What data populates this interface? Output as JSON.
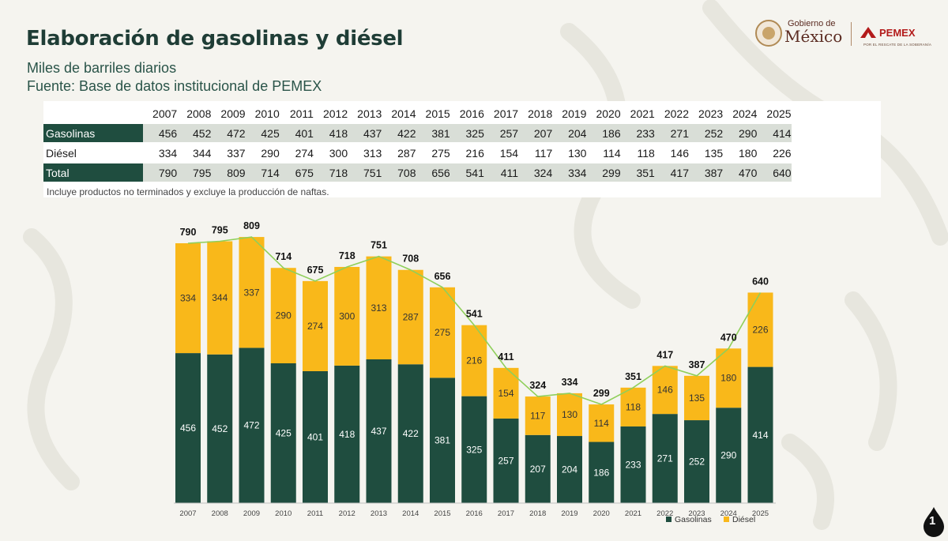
{
  "header": {
    "title": "Elaboración de gasolinas y diésel",
    "subtitle": "Miles de barriles diarios",
    "source": "Fuente: Base de datos institucional de PEMEX"
  },
  "logos": {
    "gob_line1": "Gobierno de",
    "gob_line2": "México",
    "pemex": "PEMEX",
    "pemex_tagline": "POR EL RESCATE DE LA SOBERANÍA"
  },
  "table": {
    "years": [
      "2007",
      "2008",
      "2009",
      "2010",
      "2011",
      "2012",
      "2013",
      "2014",
      "2015",
      "2016",
      "2017",
      "2018",
      "2019",
      "2020",
      "2021",
      "2022",
      "2023",
      "2024",
      "2025"
    ],
    "rows": [
      {
        "label": "Gasolinas",
        "values": [
          "456",
          "452",
          "472",
          "425",
          "401",
          "418",
          "437",
          "422",
          "381",
          "325",
          "257",
          "207",
          "204",
          "186",
          "233",
          "271",
          "252",
          "290",
          "414"
        ]
      },
      {
        "label": "Diésel",
        "values": [
          "334",
          "344",
          "337",
          "290",
          "274",
          "300",
          "313",
          "287",
          "275",
          "216",
          "154",
          "117",
          "130",
          "114",
          "118",
          "146",
          "135",
          "180",
          "226"
        ]
      },
      {
        "label": "Total",
        "values": [
          "790",
          "795",
          "809",
          "714",
          "675",
          "718",
          "751",
          "708",
          "656",
          "541",
          "411",
          "324",
          "334",
          "299",
          "351",
          "417",
          "387",
          "470",
          "640"
        ]
      }
    ]
  },
  "note": "Incluye productos no terminados y excluye la producción de naftas.",
  "chart_data": {
    "type": "bar",
    "stacked": true,
    "categories": [
      "2007",
      "2008",
      "2009",
      "2010",
      "2011",
      "2012",
      "2013",
      "2014",
      "2015",
      "2016",
      "2017",
      "2018",
      "2019",
      "2020",
      "2021",
      "2022",
      "2023",
      "2024",
      "2025"
    ],
    "series": [
      {
        "name": "Gasolinas",
        "color": "#1f4d3f",
        "values": [
          456,
          452,
          472,
          425,
          401,
          418,
          437,
          422,
          381,
          325,
          257,
          207,
          204,
          186,
          233,
          271,
          252,
          290,
          414
        ]
      },
      {
        "name": "Diésel",
        "color": "#f9b81a",
        "values": [
          334,
          344,
          337,
          290,
          274,
          300,
          313,
          287,
          275,
          216,
          154,
          117,
          130,
          114,
          118,
          146,
          135,
          180,
          226
        ]
      }
    ],
    "totals": [
      790,
      795,
      809,
      714,
      675,
      718,
      751,
      708,
      656,
      541,
      411,
      324,
      334,
      299,
      351,
      417,
      387,
      470,
      640
    ],
    "line_color": "#8fcf5a",
    "ylim": [
      0,
      850
    ],
    "legend": [
      "Gasolinas",
      "Diésel"
    ],
    "legend_position": "bottom-right"
  },
  "page_number": "1"
}
